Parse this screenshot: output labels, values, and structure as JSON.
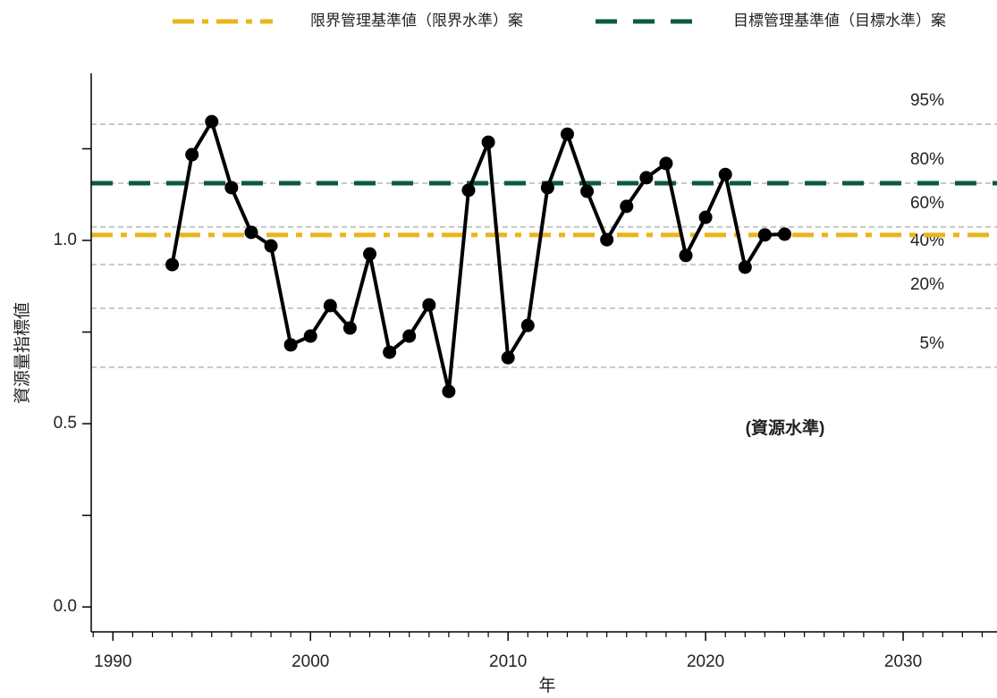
{
  "chart_data": {
    "type": "line",
    "x_label": "年",
    "y_label": "資源量指標値",
    "annotation": "(資源水準)",
    "x": [
      1993,
      1994,
      1995,
      1996,
      1997,
      1998,
      1999,
      2000,
      2001,
      2002,
      2003,
      2004,
      2005,
      2006,
      2007,
      2008,
      2009,
      2010,
      2011,
      2012,
      2013,
      2014,
      2015,
      2016,
      2017,
      2018,
      2019,
      2020,
      2021,
      2022,
      2023,
      2024
    ],
    "values": [
      0.934,
      1.234,
      1.324,
      1.144,
      1.022,
      0.985,
      0.715,
      0.739,
      0.822,
      0.761,
      0.963,
      0.695,
      0.739,
      0.824,
      0.588,
      1.137,
      1.268,
      0.68,
      0.768,
      1.144,
      1.29,
      1.134,
      1.002,
      1.093,
      1.171,
      1.21,
      0.959,
      1.063,
      1.18,
      0.927,
      1.015,
      1.017
    ],
    "color": "#000000",
    "reference_lines": [
      {
        "name": "限界管理基準値（限界水準）案",
        "value": 1.015,
        "color": "#e9b51c",
        "style": "dashdot"
      },
      {
        "name": "目標管理基準値（目標水準）案",
        "value": 1.156,
        "color": "#0b5a40",
        "style": "dashed"
      }
    ],
    "percentile_lines": [
      {
        "label": "95%",
        "value": 1.317
      },
      {
        "label": "80%",
        "value": 1.156
      },
      {
        "label": "60%",
        "value": 1.037
      },
      {
        "label": "40%",
        "value": 0.934
      },
      {
        "label": "20%",
        "value": 0.815
      },
      {
        "label": "5%",
        "value": 0.654
      }
    ],
    "xlim": [
      1988.9,
      2034.75
    ],
    "xticks": [
      1990,
      2000,
      2010,
      2020,
      2030
    ],
    "xminorticks": [
      1989,
      1991,
      1992,
      1993,
      1994,
      1995,
      1996,
      1997,
      1998,
      1999,
      2001,
      2002,
      2003,
      2004,
      2005,
      2006,
      2007,
      2008,
      2009,
      2011,
      2012,
      2013,
      2014,
      2015,
      2016,
      2017,
      2018,
      2019,
      2021,
      2022,
      2023,
      2024,
      2025,
      2026,
      2027,
      2028,
      2029,
      2031,
      2032,
      2033,
      2034
    ],
    "ylim": [
      -0.068,
      1.456
    ],
    "yticks": [
      {
        "value": 0,
        "label": "0.0"
      },
      0.5,
      {
        "value": 1,
        "label": "1.0"
      }
    ],
    "yminorticks": [
      0.25,
      0.75,
      1.25
    ]
  }
}
